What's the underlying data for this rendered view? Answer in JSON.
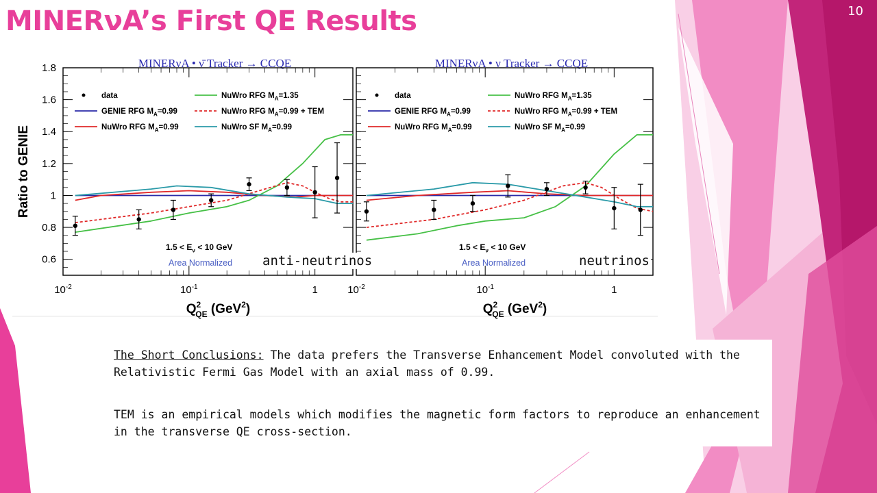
{
  "slide": {
    "title": "MINERνA’s First QE Results",
    "number": "10",
    "captions": {
      "left": "anti-neutrinos",
      "right": "neutrinos"
    },
    "conclusion_heading": "The Short Conclusions:",
    "conclusion_text": " The data prefers the Transverse Enhancement Model convoluted with the Relativistic Fermi Gas Model with an axial mass of 0.99.",
    "tem_text": "TEM is an empirical models which modifies the magnetic form factors to reproduce an enhancement in the transverse QE cross-section."
  },
  "colors": {
    "accent": "#e83f9a",
    "deep_magenta": "#b5176a",
    "pink": "#f28cc4",
    "light_pink": "#f9cfe6",
    "genie": "#2a2aa8",
    "nuwro_rfg": "#e02828",
    "nuwro_rfg_135": "#46c046",
    "nuwro_tem": "#e02828",
    "nuwro_sf": "#2a9aa8",
    "title_blue": "#2a2ab0"
  },
  "chart_data": [
    {
      "type": "line",
      "title": "MINERνA • ν̄ Tracker → CCQE",
      "xlabel": "Q²_QE (GeV²)",
      "ylabel": "Ratio to GENIE",
      "xscale": "log",
      "xlim": [
        0.01,
        2.0
      ],
      "ylim": [
        0.5,
        1.8
      ],
      "xticks": [
        {
          "v": 0.01,
          "b": "10",
          "e": "-2"
        },
        {
          "v": 0.1,
          "b": "10",
          "e": "-1"
        },
        {
          "v": 1,
          "b": "1",
          "e": ""
        }
      ],
      "yticks": [
        "0.6",
        "0.8",
        "1",
        "1.2",
        "1.4",
        "1.6",
        "1.8"
      ],
      "annotation_energy": "1.5 < E",
      "annotation_energy_sub": "ν",
      "annotation_energy_tail": " < 10 GeV",
      "annotation_norm": "Area Normalized",
      "legend_position": "top",
      "legend": [
        {
          "name": "data",
          "sub": "",
          "tail": ""
        },
        {
          "name": "GENIE RFG M",
          "sub": "A",
          "tail": "=0.99"
        },
        {
          "name": "NuWro RFG M",
          "sub": "A",
          "tail": "=0.99"
        },
        {
          "name": "NuWro RFG M",
          "sub": "A",
          "tail": "=1.35"
        },
        {
          "name": "NuWro RFG M",
          "sub": "A",
          "tail": "=0.99 + TEM"
        },
        {
          "name": "NuWro SF M",
          "sub": "A",
          "tail": "=0.99"
        }
      ],
      "data": {
        "x": [
          0.0125,
          0.04,
          0.075,
          0.15,
          0.3,
          0.6,
          1.0,
          1.5
        ],
        "y": [
          0.81,
          0.85,
          0.91,
          0.97,
          1.07,
          1.05,
          1.02,
          1.11
        ],
        "err": [
          0.06,
          0.06,
          0.06,
          0.04,
          0.04,
          0.05,
          0.16,
          0.22
        ]
      },
      "series": [
        {
          "key": "genie",
          "style": "solid",
          "x": [
            0.0125,
            2.0
          ],
          "y": [
            1.0,
            1.0
          ]
        },
        {
          "key": "nuwro_rfg",
          "style": "solid",
          "x": [
            0.0125,
            0.02,
            0.05,
            0.1,
            0.2,
            0.4,
            0.7,
            1.0,
            1.5,
            2.0
          ],
          "y": [
            0.97,
            1.0,
            1.02,
            1.03,
            1.02,
            1.0,
            0.99,
            1.0,
            1.0,
            1.0
          ]
        },
        {
          "key": "nuwro_rfg_135",
          "style": "solid",
          "x": [
            0.0125,
            0.05,
            0.1,
            0.2,
            0.3,
            0.5,
            0.8,
            1.2,
            1.6,
            2.0
          ],
          "y": [
            0.77,
            0.84,
            0.89,
            0.93,
            0.97,
            1.06,
            1.2,
            1.35,
            1.38,
            1.38
          ]
        },
        {
          "key": "nuwro_tem",
          "style": "dashed",
          "x": [
            0.0125,
            0.05,
            0.1,
            0.2,
            0.4,
            0.6,
            0.8,
            1.0,
            1.3,
            1.6,
            2.0
          ],
          "y": [
            0.83,
            0.89,
            0.93,
            0.97,
            1.04,
            1.08,
            1.06,
            1.02,
            0.98,
            0.96,
            0.96
          ]
        },
        {
          "key": "nuwro_sf",
          "style": "solid",
          "x": [
            0.0125,
            0.05,
            0.08,
            0.15,
            0.3,
            0.6,
            1.0,
            1.5,
            2.0
          ],
          "y": [
            1.0,
            1.04,
            1.06,
            1.05,
            1.01,
            0.99,
            0.98,
            0.95,
            0.95
          ]
        }
      ]
    },
    {
      "type": "line",
      "title": "MINERνA • ν Tracker → CCQE",
      "xlabel": "Q²_QE (GeV²)",
      "ylabel": "",
      "xscale": "log",
      "xlim": [
        0.01,
        2.0
      ],
      "ylim": [
        0.5,
        1.8
      ],
      "xticks": [
        {
          "v": 0.01,
          "b": "10",
          "e": "-2"
        },
        {
          "v": 0.1,
          "b": "10",
          "e": "-1"
        },
        {
          "v": 1,
          "b": "1",
          "e": ""
        }
      ],
      "yticks": [],
      "annotation_energy": "1.5 < E",
      "annotation_energy_sub": "ν",
      "annotation_energy_tail": " < 10 GeV",
      "annotation_norm": "Area Normalized",
      "legend_position": "top",
      "legend": [
        {
          "name": "data",
          "sub": "",
          "tail": ""
        },
        {
          "name": "GENIE RFG M",
          "sub": "A",
          "tail": "=0.99"
        },
        {
          "name": "NuWro RFG M",
          "sub": "A",
          "tail": "=0.99"
        },
        {
          "name": "NuWro RFG M",
          "sub": "A",
          "tail": "=1.35"
        },
        {
          "name": "NuWro RFG M",
          "sub": "A",
          "tail": "=0.99 + TEM"
        },
        {
          "name": "NuWro SF M",
          "sub": "A",
          "tail": "=0.99"
        }
      ],
      "data": {
        "x": [
          0.012,
          0.04,
          0.08,
          0.15,
          0.3,
          0.6,
          1.0,
          1.6
        ],
        "y": [
          0.9,
          0.91,
          0.95,
          1.06,
          1.04,
          1.05,
          0.92,
          0.91
        ],
        "err": [
          0.06,
          0.06,
          0.05,
          0.07,
          0.04,
          0.04,
          0.13,
          0.16
        ]
      },
      "series": [
        {
          "key": "genie",
          "style": "solid",
          "x": [
            0.012,
            2.0
          ],
          "y": [
            1.0,
            1.0
          ]
        },
        {
          "key": "nuwro_rfg",
          "style": "solid",
          "x": [
            0.012,
            0.03,
            0.08,
            0.15,
            0.3,
            0.6,
            1.0,
            2.0
          ],
          "y": [
            0.97,
            1.0,
            1.02,
            1.03,
            1.01,
            1.0,
            1.0,
            1.0
          ]
        },
        {
          "key": "nuwro_rfg_135",
          "style": "solid",
          "x": [
            0.012,
            0.03,
            0.06,
            0.1,
            0.2,
            0.35,
            0.6,
            1.0,
            1.5,
            2.0
          ],
          "y": [
            0.72,
            0.76,
            0.81,
            0.84,
            0.86,
            0.93,
            1.06,
            1.26,
            1.38,
            1.38
          ]
        },
        {
          "key": "nuwro_tem",
          "style": "dashed",
          "x": [
            0.012,
            0.04,
            0.1,
            0.2,
            0.4,
            0.6,
            0.8,
            1.1,
            1.5,
            2.0
          ],
          "y": [
            0.8,
            0.85,
            0.91,
            0.97,
            1.06,
            1.08,
            1.05,
            0.98,
            0.92,
            0.9
          ]
        },
        {
          "key": "nuwro_sf",
          "style": "solid",
          "x": [
            0.012,
            0.04,
            0.08,
            0.15,
            0.3,
            0.6,
            1.0,
            1.5,
            2.0
          ],
          "y": [
            1.0,
            1.04,
            1.08,
            1.07,
            1.03,
            0.99,
            0.96,
            0.93,
            0.93
          ]
        }
      ]
    }
  ]
}
